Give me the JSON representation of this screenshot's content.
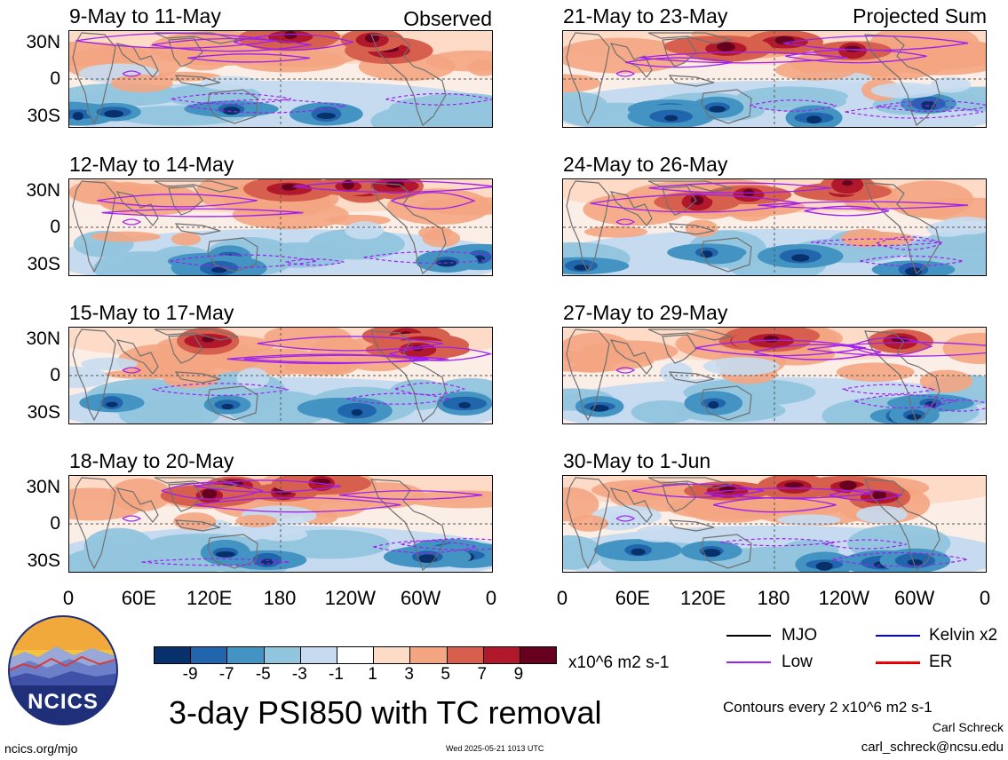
{
  "panels_left": [
    {
      "title": "9-May to 11-May",
      "tag": "Observed"
    },
    {
      "title": "12-May to 14-May",
      "tag": ""
    },
    {
      "title": "15-May to 17-May",
      "tag": ""
    },
    {
      "title": "18-May to 20-May",
      "tag": ""
    }
  ],
  "panels_right": [
    {
      "title": "21-May to 23-May",
      "tag": "Projected Sum"
    },
    {
      "title": "24-May to 26-May",
      "tag": ""
    },
    {
      "title": "27-May to 29-May",
      "tag": ""
    },
    {
      "title": "30-May to 1-Jun",
      "tag": ""
    }
  ],
  "lat_labels": [
    "30N",
    "0",
    "30S"
  ],
  "lon_labels": [
    "0",
    "60E",
    "120E",
    "180",
    "120W",
    "60W",
    "0"
  ],
  "colorbar": {
    "ticks": [
      "-9",
      "-7",
      "-5",
      "-3",
      "-1",
      "1",
      "3",
      "5",
      "7",
      "9"
    ],
    "colors": [
      "#08306b",
      "#2166ac",
      "#4393c3",
      "#92c5de",
      "#c6dbef",
      "#ffffff",
      "#fddbc7",
      "#f4a582",
      "#d6604d",
      "#b2182b",
      "#67001f"
    ],
    "units": "x10^6 m2 s-1"
  },
  "legend": {
    "items": [
      {
        "label": "MJO",
        "color": "#000000"
      },
      {
        "label": "Kelvin x2",
        "color": "#0000ee"
      },
      {
        "label": "Low",
        "color": "#a020f0"
      },
      {
        "label": "ER",
        "color": "#ff0000"
      }
    ],
    "contours_note": "Contours every 2 x10^6 m2 s-1"
  },
  "logo": {
    "text": "NCICS"
  },
  "main_title": "3-day PSI850 with TC removal",
  "footer": {
    "url": "ncics.org/mjo",
    "timestamp": "Wed 2025-05-21 1013 UTC",
    "author": "Carl Schreck",
    "email": "carl_schreck@ncsu.edu"
  }
}
